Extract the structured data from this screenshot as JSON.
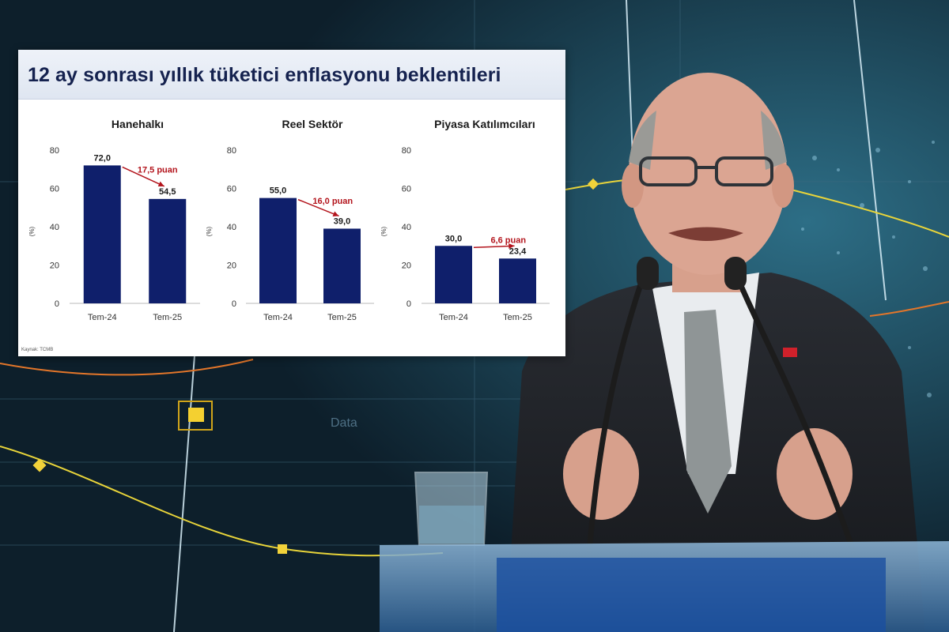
{
  "slide": {
    "title": "12 ay sonrası yıllık tüketici enflasyonu beklentileri",
    "source": "Kaynak: TCMB"
  },
  "background": {
    "watermark": "Data"
  },
  "colors": {
    "bar": "#0f1f6b",
    "annotation": "#b3141c",
    "axis_text": "#333333",
    "panel_title": "#1a1a1a"
  },
  "chart_data": [
    {
      "type": "bar",
      "title": "Hanehalkı",
      "ylabel": "(%)",
      "ylim": [
        0,
        80
      ],
      "yticks": [
        0,
        20,
        40,
        60,
        80
      ],
      "categories": [
        "Tem-24",
        "Tem-25"
      ],
      "values": [
        72.0,
        54.5
      ],
      "value_labels": [
        "72,0",
        "54,5"
      ],
      "annotation": "17,5 puan",
      "grid": false
    },
    {
      "type": "bar",
      "title": "Reel Sektör",
      "ylabel": "(%)",
      "ylim": [
        0,
        80
      ],
      "yticks": [
        0,
        20,
        40,
        60,
        80
      ],
      "categories": [
        "Tem-24",
        "Tem-25"
      ],
      "values": [
        55.0,
        39.0
      ],
      "value_labels": [
        "55,0",
        "39,0"
      ],
      "annotation": "16,0 puan",
      "grid": false
    },
    {
      "type": "bar",
      "title": "Piyasa Katılımcıları",
      "ylabel": "(%)",
      "ylim": [
        0,
        80
      ],
      "yticks": [
        0,
        20,
        40,
        60,
        80
      ],
      "categories": [
        "Tem-24",
        "Tem-25"
      ],
      "values": [
        30.0,
        23.4
      ],
      "value_labels": [
        "30,0",
        "23,4"
      ],
      "annotation": "6,6 puan",
      "grid": false
    }
  ]
}
